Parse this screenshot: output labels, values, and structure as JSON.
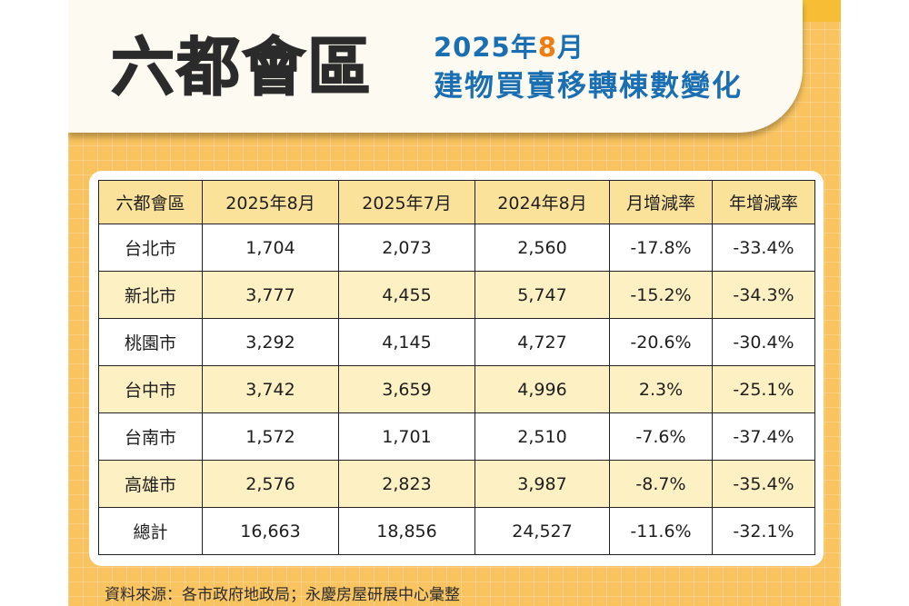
{
  "header": {
    "title": "六都會區",
    "subtitle_year": "2025年",
    "subtitle_month": "8",
    "subtitle_month_unit": "月",
    "subtitle_line2": "建物買賣移轉棟數變化"
  },
  "table": {
    "columns": [
      "六都會區",
      "2025年8月",
      "2025年7月",
      "2024年8月",
      "月增減率",
      "年增減率"
    ],
    "rows": [
      {
        "city": "台北市",
        "aug2025": "1,704",
        "jul2025": "2,073",
        "aug2024": "2,560",
        "mom": "-17.8%",
        "yoy": "-33.4%"
      },
      {
        "city": "新北市",
        "aug2025": "3,777",
        "jul2025": "4,455",
        "aug2024": "5,747",
        "mom": "-15.2%",
        "yoy": "-34.3%"
      },
      {
        "city": "桃園市",
        "aug2025": "3,292",
        "jul2025": "4,145",
        "aug2024": "4,727",
        "mom": "-20.6%",
        "yoy": "-30.4%"
      },
      {
        "city": "台中市",
        "aug2025": "3,742",
        "jul2025": "3,659",
        "aug2024": "4,996",
        "mom": "2.3%",
        "yoy": "-25.1%"
      },
      {
        "city": "台南市",
        "aug2025": "1,572",
        "jul2025": "1,701",
        "aug2024": "2,510",
        "mom": "-7.6%",
        "yoy": "-37.4%"
      },
      {
        "city": "高雄市",
        "aug2025": "2,576",
        "jul2025": "2,823",
        "aug2024": "3,987",
        "mom": "-8.7%",
        "yoy": "-35.4%"
      },
      {
        "city": "總計",
        "aug2025": "16,663",
        "jul2025": "18,856",
        "aug2024": "24,527",
        "mom": "-11.6%",
        "yoy": "-32.1%"
      }
    ]
  },
  "footer": {
    "source": "資料來源：各市政府地政局；永慶房屋研展中心彙整"
  },
  "colors": {
    "background": "#f9c35f",
    "header_band": "#fdfaf1",
    "title_text": "#2b2b2b",
    "subtitle_blue": "#1a6fb3",
    "subtitle_orange": "#ef7d12",
    "table_header": "#fbe29b",
    "row_alt": "#fdf0c3"
  }
}
